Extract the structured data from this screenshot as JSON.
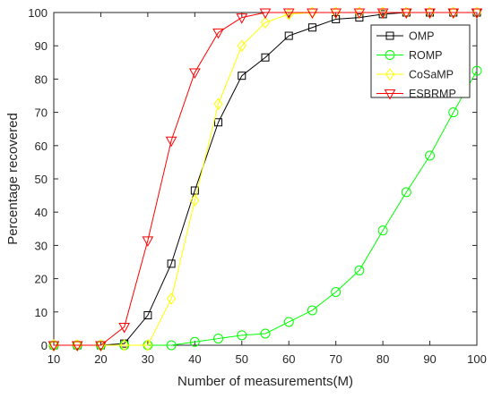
{
  "chart_data": {
    "type": "line",
    "xlabel": "Number of measurements(M)",
    "ylabel": "Percentage recovered",
    "xlim": [
      10,
      100
    ],
    "ylim": [
      0,
      100
    ],
    "xticks": [
      10,
      20,
      30,
      40,
      50,
      60,
      70,
      80,
      90,
      100
    ],
    "yticks": [
      0,
      10,
      20,
      30,
      40,
      50,
      60,
      70,
      80,
      90,
      100
    ],
    "grid": false,
    "legend_position": "top-right",
    "x": [
      10,
      15,
      20,
      25,
      30,
      35,
      40,
      45,
      50,
      55,
      60,
      65,
      70,
      75,
      80,
      85,
      90,
      95,
      100
    ],
    "series": [
      {
        "name": "OMP",
        "color": "#000000",
        "marker": "square",
        "values": [
          0,
          0,
          0,
          0.5,
          9,
          24.5,
          46.5,
          67,
          81,
          86.5,
          93,
          95.5,
          98,
          98.5,
          99.5,
          100,
          100,
          100,
          100
        ]
      },
      {
        "name": "ROMP",
        "color": "#00ff00",
        "marker": "circle",
        "values": [
          0,
          0,
          0,
          0,
          0,
          0,
          1,
          2,
          3,
          3.5,
          7,
          10.5,
          16,
          22.5,
          34.5,
          46,
          57,
          70,
          82.5
        ]
      },
      {
        "name": "CoSaMP",
        "color": "#ffff00",
        "marker": "diamond",
        "values": [
          0,
          0,
          0,
          0,
          0,
          14,
          43.5,
          72.5,
          90,
          97,
          99.5,
          100,
          100,
          100,
          100,
          100,
          100,
          100,
          100
        ]
      },
      {
        "name": "ESBRMP",
        "color": "#ff0000",
        "marker": "triangle-down",
        "values": [
          0,
          0,
          0,
          5.5,
          31.5,
          61.5,
          82,
          94,
          98.5,
          100,
          100,
          100,
          100,
          100,
          100,
          100,
          100,
          100,
          100
        ]
      }
    ]
  }
}
